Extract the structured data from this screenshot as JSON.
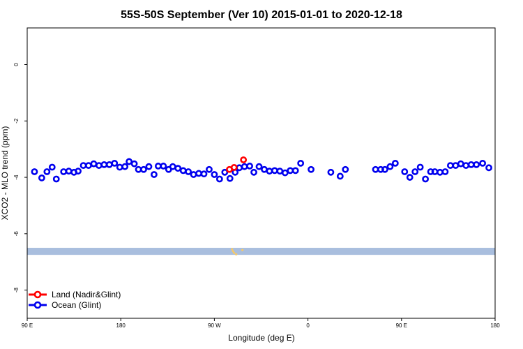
{
  "chart_data": {
    "type": "scatter",
    "title": "55S-50S September (Ver 10)   2015-01-01 to 2020-12-18",
    "xlabel": "Longitude (deg E)",
    "ylabel": "XCO2 - MLO trend (ppm)",
    "xlim": [
      90,
      540
    ],
    "ylim": [
      -9.0,
      1.3
    ],
    "x_ticks": [
      {
        "value": 90,
        "label": "90 E"
      },
      {
        "value": 180,
        "label": "180"
      },
      {
        "value": 270,
        "label": "90 W"
      },
      {
        "value": 360,
        "label": "0"
      },
      {
        "value": 450,
        "label": "90 E"
      },
      {
        "value": 540,
        "label": "180"
      }
    ],
    "y_ticks": [
      {
        "value": 0,
        "label": "0"
      },
      {
        "value": -2,
        "label": "-2"
      },
      {
        "value": -4,
        "label": "-4"
      },
      {
        "value": -6,
        "label": "-6"
      },
      {
        "value": -8,
        "label": "-8"
      }
    ],
    "grid": false,
    "legend_position": "bottom-left",
    "band": {
      "y_top": -6.5,
      "y_bottom": -6.75,
      "color": "#a9bede"
    },
    "land_marks": {
      "color": "#f5c96a",
      "points": [
        [
          287,
          -6.55
        ],
        [
          288,
          -6.62
        ],
        [
          289,
          -6.68
        ],
        [
          291,
          -6.73
        ],
        [
          297,
          -6.58
        ]
      ]
    },
    "series": [
      {
        "name": "Land (Nadir&Glint)",
        "color": "#ff0000",
        "points": [
          [
            284.5,
            -3.72
          ],
          [
            289,
            -3.65
          ],
          [
            298,
            -3.38
          ]
        ]
      },
      {
        "name": "Ocean (Glint)",
        "color": "#0000ee",
        "points": [
          [
            97,
            -3.8
          ],
          [
            104,
            -4.02
          ],
          [
            109,
            -3.8
          ],
          [
            114,
            -3.64
          ],
          [
            118,
            -4.06
          ],
          [
            125,
            -3.8
          ],
          [
            130,
            -3.78
          ],
          [
            135,
            -3.82
          ],
          [
            139,
            -3.78
          ],
          [
            144,
            -3.58
          ],
          [
            149,
            -3.58
          ],
          [
            154,
            -3.52
          ],
          [
            159,
            -3.58
          ],
          [
            164,
            -3.55
          ],
          [
            169,
            -3.55
          ],
          [
            174,
            -3.5
          ],
          [
            179,
            -3.64
          ],
          [
            184,
            -3.62
          ],
          [
            188,
            -3.44
          ],
          [
            193,
            -3.52
          ],
          [
            197,
            -3.72
          ],
          [
            202,
            -3.72
          ],
          [
            207,
            -3.62
          ],
          [
            212,
            -3.9
          ],
          [
            216,
            -3.6
          ],
          [
            221,
            -3.6
          ],
          [
            226,
            -3.72
          ],
          [
            230,
            -3.62
          ],
          [
            235,
            -3.68
          ],
          [
            240,
            -3.76
          ],
          [
            245,
            -3.8
          ],
          [
            250,
            -3.9
          ],
          [
            255,
            -3.86
          ],
          [
            260,
            -3.88
          ],
          [
            265,
            -3.72
          ],
          [
            270,
            -3.9
          ],
          [
            275,
            -4.06
          ],
          [
            280,
            -3.82
          ],
          [
            285,
            -4.04
          ],
          [
            290,
            -3.82
          ],
          [
            294,
            -3.66
          ],
          [
            299,
            -3.62
          ],
          [
            304,
            -3.6
          ],
          [
            308,
            -3.82
          ],
          [
            313,
            -3.62
          ],
          [
            318,
            -3.72
          ],
          [
            323,
            -3.78
          ],
          [
            328,
            -3.76
          ],
          [
            333,
            -3.78
          ],
          [
            338,
            -3.84
          ],
          [
            343,
            -3.76
          ],
          [
            348,
            -3.76
          ],
          [
            353,
            -3.5
          ],
          [
            363,
            -3.72
          ],
          [
            382,
            -3.82
          ],
          [
            391,
            -3.96
          ],
          [
            396,
            -3.72
          ],
          [
            425,
            -3.72
          ],
          [
            430,
            -3.72
          ],
          [
            434,
            -3.72
          ],
          [
            439,
            -3.62
          ],
          [
            444,
            -3.5
          ],
          [
            453,
            -3.8
          ],
          [
            458,
            -4.0
          ],
          [
            463,
            -3.8
          ],
          [
            468,
            -3.64
          ],
          [
            473,
            -4.06
          ],
          [
            478,
            -3.8
          ],
          [
            482,
            -3.8
          ],
          [
            487,
            -3.82
          ],
          [
            492,
            -3.8
          ],
          [
            497,
            -3.58
          ],
          [
            502,
            -3.58
          ],
          [
            507,
            -3.52
          ],
          [
            512,
            -3.58
          ],
          [
            517,
            -3.55
          ],
          [
            522,
            -3.55
          ],
          [
            528,
            -3.5
          ],
          [
            534,
            -3.66
          ]
        ]
      }
    ]
  }
}
